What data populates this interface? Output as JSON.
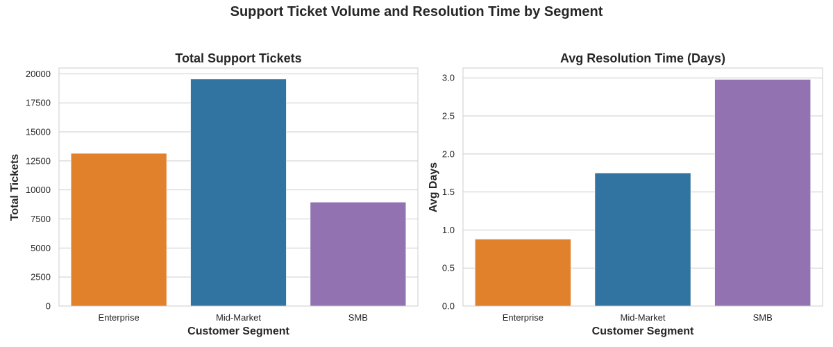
{
  "figure": {
    "title": "Support Ticket Volume and Resolution Time by Segment"
  },
  "chart_data": [
    {
      "type": "bar",
      "title": "Total Support Tickets",
      "xlabel": "Customer Segment",
      "ylabel": "Total Tickets",
      "categories": [
        "Enterprise",
        "Mid-Market",
        "SMB"
      ],
      "values": [
        13150,
        19550,
        8950
      ],
      "colors": [
        "#e1812c",
        "#3274a1",
        "#9372b2"
      ],
      "ylim": [
        0,
        20500
      ],
      "yticks": [
        0,
        2500,
        5000,
        7500,
        10000,
        12500,
        15000,
        17500,
        20000
      ],
      "ytick_labels": [
        "0",
        "2500",
        "5000",
        "7500",
        "10000",
        "12500",
        "15000",
        "17500",
        "20000"
      ],
      "grid": "horizontal"
    },
    {
      "type": "bar",
      "title": "Avg Resolution Time (Days)",
      "xlabel": "Customer Segment",
      "ylabel": "Avg Days",
      "categories": [
        "Enterprise",
        "Mid-Market",
        "SMB"
      ],
      "values": [
        0.88,
        1.75,
        2.98
      ],
      "colors": [
        "#e1812c",
        "#3274a1",
        "#9372b2"
      ],
      "ylim": [
        0,
        3.13
      ],
      "yticks": [
        0.0,
        0.5,
        1.0,
        1.5,
        2.0,
        2.5,
        3.0
      ],
      "ytick_labels": [
        "0.0",
        "0.5",
        "1.0",
        "1.5",
        "2.0",
        "2.5",
        "3.0"
      ],
      "grid": "horizontal"
    }
  ]
}
